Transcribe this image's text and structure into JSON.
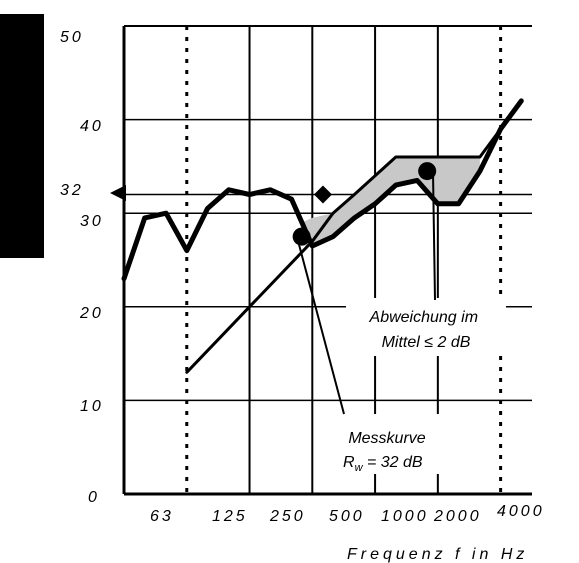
{
  "chart_data": {
    "type": "line",
    "xlabel": "Frequenz f in Hz",
    "ylabel": "",
    "ylim": [
      0,
      50
    ],
    "y_ticks": [
      "0",
      "10",
      "20",
      "30",
      "40",
      "50"
    ],
    "x_tick_labels": [
      {
        "label": "63",
        "pos": 0.5
      },
      {
        "label": "125",
        "pos": 1.5
      },
      {
        "label": "250",
        "pos": 2.5
      },
      {
        "label": "500",
        "pos": 3.5
      },
      {
        "label": "1000",
        "pos": 4.5
      },
      {
        "label": "2000",
        "pos": 5.5
      },
      {
        "label": "4000",
        "pos": 6.5
      }
    ],
    "xlim": [
      0,
      6.5
    ],
    "y_marker": {
      "label": "32",
      "value": 32
    },
    "grid": true,
    "series": [
      {
        "points": [
          [
            0,
            23
          ],
          [
            0.33,
            29.5
          ],
          [
            0.67,
            30
          ],
          [
            1,
            26
          ],
          [
            1.33,
            30.5
          ],
          [
            1.67,
            32.5
          ],
          [
            2,
            32
          ],
          [
            2.33,
            32.5
          ],
          [
            2.67,
            31.5
          ],
          [
            3,
            26.5
          ],
          [
            3.33,
            27.5
          ],
          [
            3.67,
            29.5
          ],
          [
            4,
            31
          ],
          [
            4.33,
            33
          ],
          [
            4.67,
            33.5
          ],
          [
            5,
            31
          ],
          [
            5.33,
            31
          ],
          [
            5.67,
            34.5
          ],
          [
            6,
            39
          ],
          [
            6.33,
            42
          ]
        ]
      },
      {
        "points": [
          [
            1,
            13
          ],
          [
            2,
            20
          ],
          [
            3,
            27
          ],
          [
            3.33,
            30
          ],
          [
            3.67,
            32
          ],
          [
            4,
            34
          ],
          [
            4.33,
            36
          ],
          [
            4.67,
            36
          ],
          [
            5,
            36
          ],
          [
            5.33,
            36
          ],
          [
            5.67,
            36
          ],
          [
            6,
            39
          ],
          [
            6.33,
            42
          ]
        ]
      }
    ],
    "shaded_region": {
      "upper": [
        [
          2.83,
          29
        ],
        [
          3,
          29.5
        ],
        [
          3.33,
          30
        ],
        [
          3.67,
          32
        ],
        [
          4,
          34
        ],
        [
          4.33,
          36
        ],
        [
          4.67,
          36
        ],
        [
          5,
          36
        ],
        [
          5.33,
          36
        ],
        [
          5.67,
          36
        ]
      ],
      "lower": [
        [
          5.67,
          34.5
        ],
        [
          5.33,
          31
        ],
        [
          5,
          31
        ],
        [
          4.67,
          33.5
        ],
        [
          4.33,
          33
        ],
        [
          4,
          31
        ],
        [
          3.67,
          29.5
        ],
        [
          3.33,
          27.5
        ],
        [
          3,
          26.5
        ],
        [
          2.83,
          26.5
        ]
      ]
    },
    "dotted_lines_x": [
      1,
      6
    ],
    "shifted_marker": {
      "x": 3.17,
      "y": 32
    },
    "callout_points": [
      {
        "x": 2.83,
        "y": 27.5
      },
      {
        "x": 4.83,
        "y": 34.5
      }
    ],
    "annotations": [
      {
        "lines": [
          "Abweichung im",
          "Mittel ≤ 2 dB"
        ]
      },
      {
        "lines": [
          "Messkurve",
          "R",
          "w",
          " = 32 dB"
        ]
      }
    ]
  }
}
